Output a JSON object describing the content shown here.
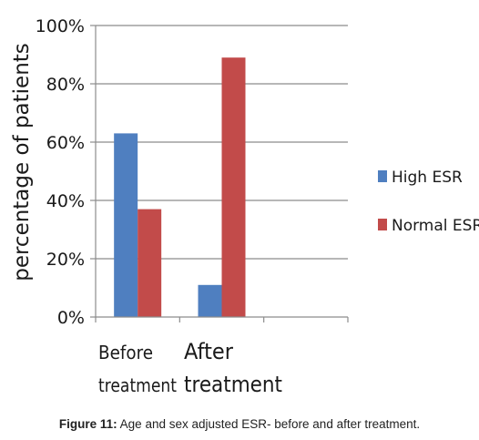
{
  "chart_data": {
    "type": "bar",
    "title": "",
    "xlabel": "",
    "ylabel": "percentage of patients",
    "ylim": [
      0,
      100
    ],
    "yticks": [
      "0%",
      "20%",
      "40%",
      "60%",
      "80%",
      "100%"
    ],
    "categories": [
      {
        "line1": "Before",
        "line2": "treatment"
      },
      {
        "line1": "After",
        "line2": "treatment"
      },
      {
        "line1": "",
        "line2": ""
      }
    ],
    "series": [
      {
        "name": "High ESR",
        "color": "#4f7fc0",
        "values": [
          63,
          11,
          null
        ]
      },
      {
        "name": "Normal ESR",
        "color": "#c24b4a",
        "values": [
          37,
          89,
          null
        ]
      }
    ],
    "grid": true,
    "legend_position": "right"
  },
  "caption": {
    "label": "Figure 11:",
    "text": "Age and sex adjusted ESR- before and after treatment."
  }
}
